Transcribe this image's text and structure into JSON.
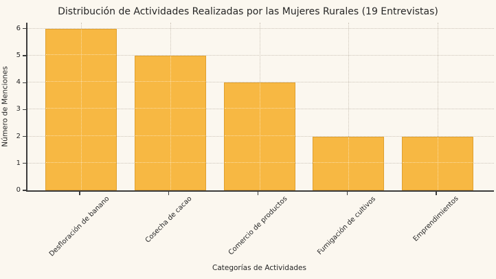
{
  "chart_data": {
    "type": "bar",
    "title": "Distribución de Actividades Realizadas por las Mujeres Rurales (19 Entrevistas)",
    "xlabel": "Categorías de Actividades",
    "ylabel": "Número de Menciones",
    "categories": [
      "Desfloración de banano",
      "Cosecha de cacao",
      "Comercio de productos",
      "Fumigación de cultivos",
      "Emprendimientos"
    ],
    "values": [
      6,
      5,
      4,
      2,
      2
    ],
    "yticks": [
      0,
      1,
      2,
      3,
      4,
      5,
      6
    ],
    "ylim": [
      0,
      6.2
    ],
    "grid": "dotted, horizontal and vertical, below bars",
    "legend": "none",
    "colors": {
      "background": "#FBF7EF",
      "bar_fill": "#F7B843",
      "bar_edge": "#DFA030",
      "gridline": "#CCC4B8",
      "axis": "#3B3B3B",
      "text": "#262626"
    }
  }
}
